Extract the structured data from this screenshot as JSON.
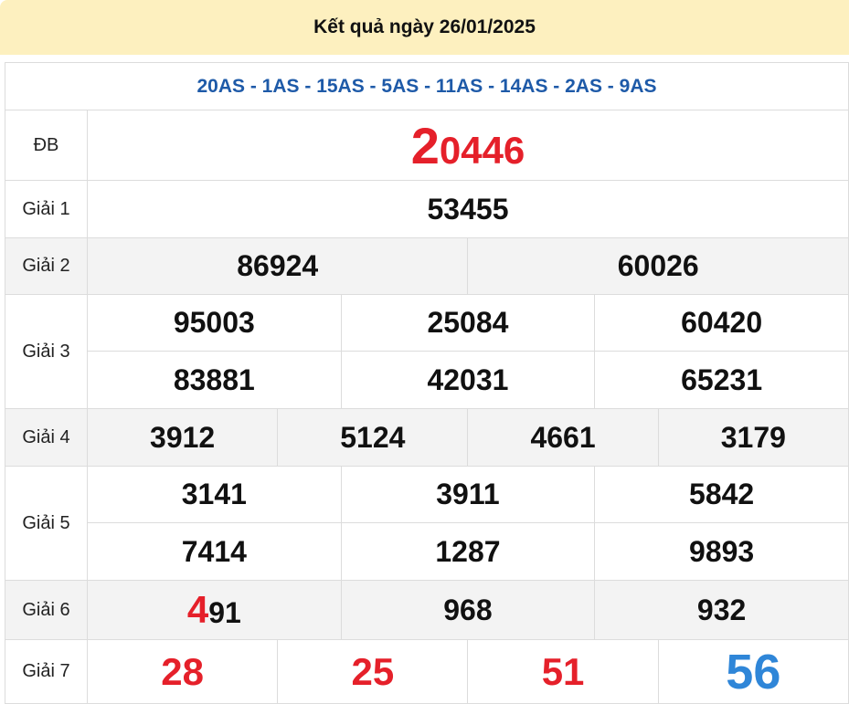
{
  "header": {
    "title": "Kết quả ngày 26/01/2025"
  },
  "codes": "20AS - 1AS - 15AS - 5AS - 11AS - 14AS - 2AS - 9AS",
  "colors": {
    "highlight": "#e5202a",
    "special": "#2f86d8",
    "header_bg": "#fdf0bf",
    "code_text": "#1e5aa8"
  },
  "prizes": {
    "db": {
      "label": "ĐB",
      "head": "2",
      "tail": "0446"
    },
    "g1": {
      "label": "Giải 1",
      "values": [
        "53455"
      ]
    },
    "g2": {
      "label": "Giải 2",
      "values": [
        "86924",
        "60026"
      ]
    },
    "g3": {
      "label": "Giải 3",
      "values": [
        "95003",
        "25084",
        "60420",
        "83881",
        "42031",
        "65231"
      ]
    },
    "g4": {
      "label": "Giải 4",
      "values": [
        "3912",
        "5124",
        "4661",
        "3179"
      ]
    },
    "g5": {
      "label": "Giải 5",
      "values": [
        "3141",
        "3911",
        "5842",
        "7414",
        "1287",
        "9893"
      ]
    },
    "g6": {
      "label": "Giải 6",
      "first": {
        "head": "4",
        "tail": "91"
      },
      "values": [
        "968",
        "932"
      ]
    },
    "g7": {
      "label": "Giải 7",
      "values": [
        "28",
        "25",
        "51",
        "56"
      ]
    }
  }
}
